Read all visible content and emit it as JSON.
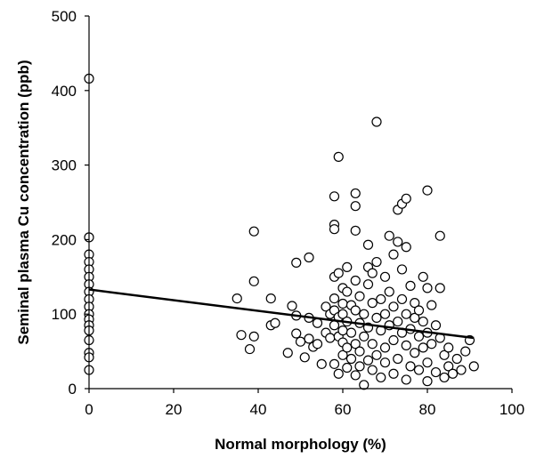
{
  "chart_data": {
    "type": "scatter",
    "title": "",
    "xlabel": "Normal morphology (%)",
    "ylabel": "Seminal plasma Cu concentration (ppb)",
    "xlim": [
      0,
      100
    ],
    "ylim": [
      0,
      500
    ],
    "x_ticks": [
      "0",
      "20",
      "40",
      "60",
      "80",
      "100"
    ],
    "y_ticks": [
      "0",
      "100",
      "200",
      "300",
      "400",
      "500"
    ],
    "grid": false,
    "legend": "none",
    "colors": {
      "axis": "#000000",
      "marker_stroke": "#000000",
      "marker_fill": "#ffffff",
      "trend_line": "#000000"
    },
    "trend_line": {
      "x": [
        0,
        91
      ],
      "y": [
        133,
        68
      ]
    },
    "points": [
      {
        "x": 0,
        "y": 416
      },
      {
        "x": 0,
        "y": 203
      },
      {
        "x": 0,
        "y": 180
      },
      {
        "x": 0,
        "y": 170
      },
      {
        "x": 0,
        "y": 160
      },
      {
        "x": 0,
        "y": 150
      },
      {
        "x": 0,
        "y": 140
      },
      {
        "x": 0,
        "y": 130
      },
      {
        "x": 0,
        "y": 120
      },
      {
        "x": 0,
        "y": 110
      },
      {
        "x": 0,
        "y": 100
      },
      {
        "x": 0,
        "y": 93
      },
      {
        "x": 0,
        "y": 85
      },
      {
        "x": 0,
        "y": 78
      },
      {
        "x": 0,
        "y": 65
      },
      {
        "x": 0,
        "y": 48
      },
      {
        "x": 0,
        "y": 42
      },
      {
        "x": 0,
        "y": 25
      },
      {
        "x": 35,
        "y": 121
      },
      {
        "x": 36,
        "y": 72
      },
      {
        "x": 38,
        "y": 53
      },
      {
        "x": 39,
        "y": 211
      },
      {
        "x": 39,
        "y": 144
      },
      {
        "x": 39,
        "y": 70
      },
      {
        "x": 43,
        "y": 121
      },
      {
        "x": 43,
        "y": 85
      },
      {
        "x": 44,
        "y": 88
      },
      {
        "x": 47,
        "y": 48
      },
      {
        "x": 48,
        "y": 111
      },
      {
        "x": 49,
        "y": 169
      },
      {
        "x": 49,
        "y": 98
      },
      {
        "x": 49,
        "y": 74
      },
      {
        "x": 50,
        "y": 63
      },
      {
        "x": 51,
        "y": 42
      },
      {
        "x": 52,
        "y": 176
      },
      {
        "x": 52,
        "y": 95
      },
      {
        "x": 52,
        "y": 67
      },
      {
        "x": 53,
        "y": 56
      },
      {
        "x": 54,
        "y": 88
      },
      {
        "x": 54,
        "y": 60
      },
      {
        "x": 55,
        "y": 33
      },
      {
        "x": 56,
        "y": 110
      },
      {
        "x": 56,
        "y": 75
      },
      {
        "x": 57,
        "y": 100
      },
      {
        "x": 57,
        "y": 68
      },
      {
        "x": 58,
        "y": 258
      },
      {
        "x": 58,
        "y": 220
      },
      {
        "x": 58,
        "y": 214
      },
      {
        "x": 58,
        "y": 150
      },
      {
        "x": 58,
        "y": 121
      },
      {
        "x": 58,
        "y": 105
      },
      {
        "x": 58,
        "y": 85
      },
      {
        "x": 58,
        "y": 33
      },
      {
        "x": 59,
        "y": 311
      },
      {
        "x": 59,
        "y": 155
      },
      {
        "x": 59,
        "y": 96
      },
      {
        "x": 59,
        "y": 70
      },
      {
        "x": 59,
        "y": 20
      },
      {
        "x": 60,
        "y": 135
      },
      {
        "x": 60,
        "y": 114
      },
      {
        "x": 60,
        "y": 100
      },
      {
        "x": 60,
        "y": 78
      },
      {
        "x": 60,
        "y": 62
      },
      {
        "x": 60,
        "y": 45
      },
      {
        "x": 61,
        "y": 163
      },
      {
        "x": 61,
        "y": 130
      },
      {
        "x": 61,
        "y": 90
      },
      {
        "x": 61,
        "y": 55
      },
      {
        "x": 61,
        "y": 28
      },
      {
        "x": 62,
        "y": 112
      },
      {
        "x": 62,
        "y": 75
      },
      {
        "x": 62,
        "y": 40
      },
      {
        "x": 63,
        "y": 262
      },
      {
        "x": 63,
        "y": 245
      },
      {
        "x": 63,
        "y": 212
      },
      {
        "x": 63,
        "y": 145
      },
      {
        "x": 63,
        "y": 105
      },
      {
        "x": 63,
        "y": 60
      },
      {
        "x": 63,
        "y": 18
      },
      {
        "x": 64,
        "y": 124
      },
      {
        "x": 64,
        "y": 88
      },
      {
        "x": 64,
        "y": 50
      },
      {
        "x": 64,
        "y": 30
      },
      {
        "x": 65,
        "y": 5
      },
      {
        "x": 65,
        "y": 100
      },
      {
        "x": 65,
        "y": 70
      },
      {
        "x": 66,
        "y": 193
      },
      {
        "x": 66,
        "y": 163
      },
      {
        "x": 66,
        "y": 140
      },
      {
        "x": 66,
        "y": 82
      },
      {
        "x": 66,
        "y": 38
      },
      {
        "x": 67,
        "y": 155
      },
      {
        "x": 67,
        "y": 115
      },
      {
        "x": 67,
        "y": 60
      },
      {
        "x": 67,
        "y": 25
      },
      {
        "x": 68,
        "y": 358
      },
      {
        "x": 68,
        "y": 170
      },
      {
        "x": 68,
        "y": 95
      },
      {
        "x": 68,
        "y": 45
      },
      {
        "x": 69,
        "y": 120
      },
      {
        "x": 69,
        "y": 78
      },
      {
        "x": 69,
        "y": 15
      },
      {
        "x": 70,
        "y": 150
      },
      {
        "x": 70,
        "y": 100
      },
      {
        "x": 70,
        "y": 55
      },
      {
        "x": 70,
        "y": 35
      },
      {
        "x": 71,
        "y": 205
      },
      {
        "x": 71,
        "y": 130
      },
      {
        "x": 71,
        "y": 85
      },
      {
        "x": 72,
        "y": 180
      },
      {
        "x": 72,
        "y": 110
      },
      {
        "x": 72,
        "y": 65
      },
      {
        "x": 72,
        "y": 20
      },
      {
        "x": 73,
        "y": 197
      },
      {
        "x": 73,
        "y": 240
      },
      {
        "x": 73,
        "y": 90
      },
      {
        "x": 73,
        "y": 40
      },
      {
        "x": 74,
        "y": 248
      },
      {
        "x": 74,
        "y": 160
      },
      {
        "x": 74,
        "y": 120
      },
      {
        "x": 74,
        "y": 75
      },
      {
        "x": 75,
        "y": 255
      },
      {
        "x": 75,
        "y": 190
      },
      {
        "x": 75,
        "y": 100
      },
      {
        "x": 75,
        "y": 58
      },
      {
        "x": 75,
        "y": 12
      },
      {
        "x": 76,
        "y": 138
      },
      {
        "x": 76,
        "y": 80
      },
      {
        "x": 76,
        "y": 30
      },
      {
        "x": 77,
        "y": 115
      },
      {
        "x": 77,
        "y": 95
      },
      {
        "x": 77,
        "y": 48
      },
      {
        "x": 78,
        "y": 105
      },
      {
        "x": 78,
        "y": 70
      },
      {
        "x": 78,
        "y": 25
      },
      {
        "x": 79,
        "y": 150
      },
      {
        "x": 79,
        "y": 90
      },
      {
        "x": 79,
        "y": 55
      },
      {
        "x": 80,
        "y": 266
      },
      {
        "x": 80,
        "y": 135
      },
      {
        "x": 80,
        "y": 75
      },
      {
        "x": 80,
        "y": 35
      },
      {
        "x": 80,
        "y": 10
      },
      {
        "x": 81,
        "y": 112
      },
      {
        "x": 81,
        "y": 60
      },
      {
        "x": 82,
        "y": 85
      },
      {
        "x": 82,
        "y": 22
      },
      {
        "x": 83,
        "y": 205
      },
      {
        "x": 83,
        "y": 135
      },
      {
        "x": 83,
        "y": 68
      },
      {
        "x": 84,
        "y": 45
      },
      {
        "x": 84,
        "y": 15
      },
      {
        "x": 85,
        "y": 55
      },
      {
        "x": 85,
        "y": 30
      },
      {
        "x": 86,
        "y": 20
      },
      {
        "x": 87,
        "y": 40
      },
      {
        "x": 88,
        "y": 25
      },
      {
        "x": 89,
        "y": 50
      },
      {
        "x": 90,
        "y": 65
      },
      {
        "x": 91,
        "y": 30
      }
    ]
  }
}
